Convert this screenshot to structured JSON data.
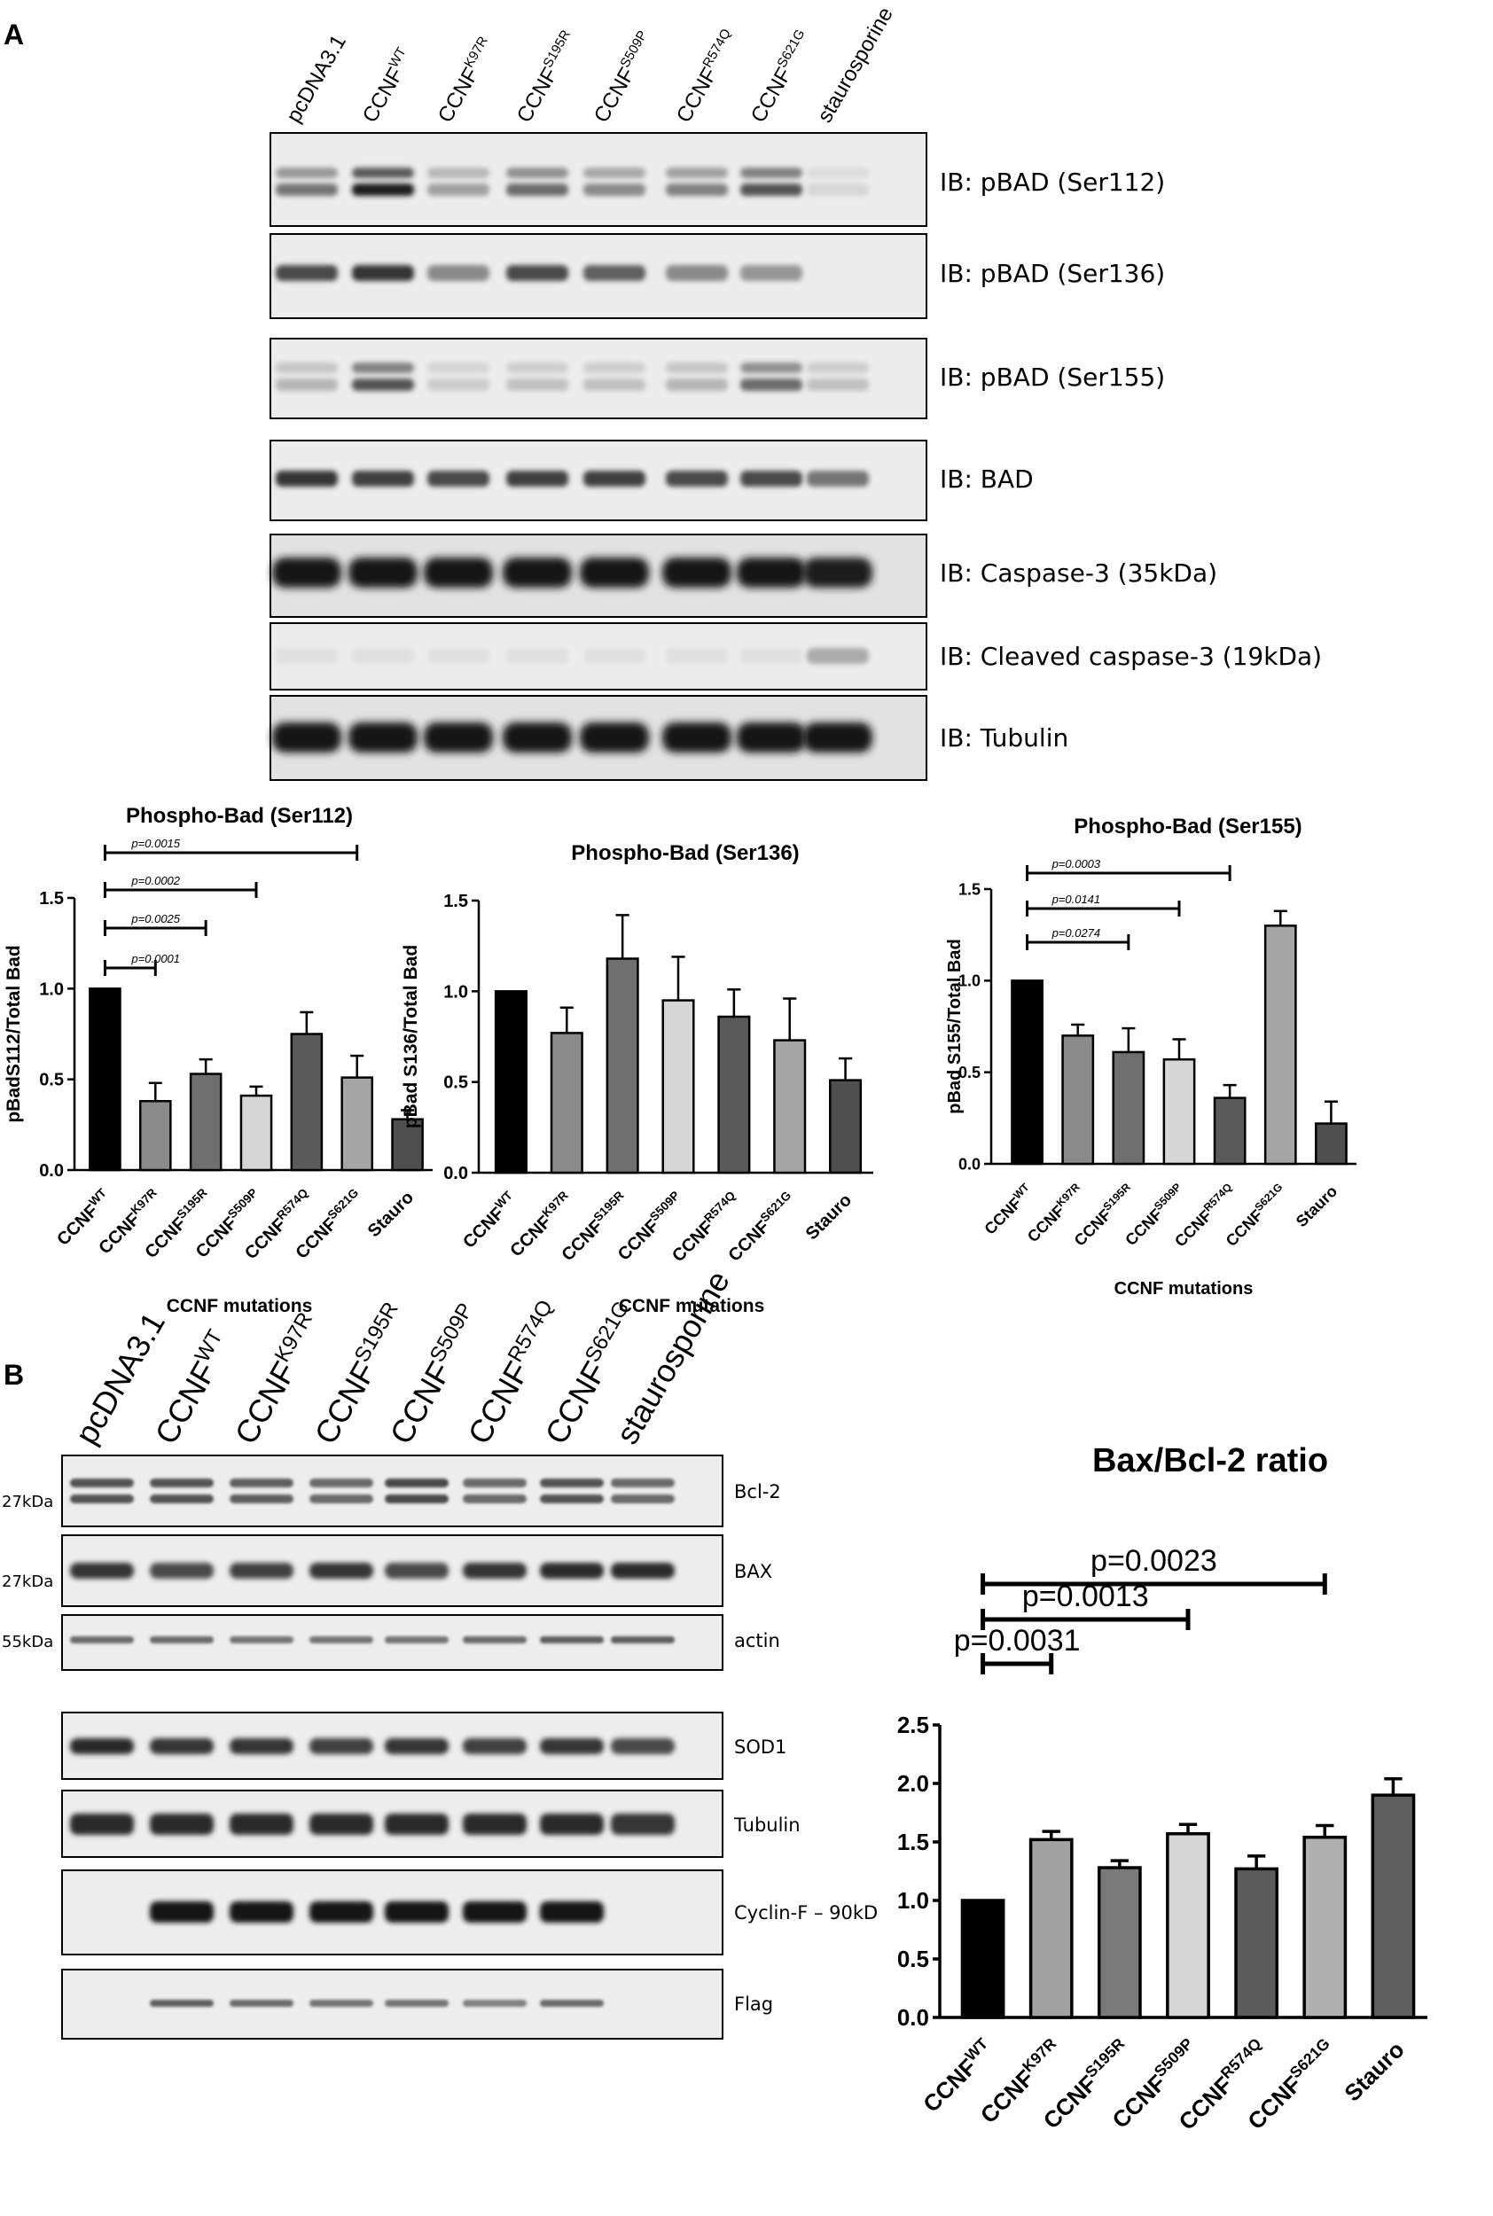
{
  "panels": {
    "a": "A",
    "b": "B"
  },
  "blot_a": {
    "lanes": [
      "pcDNA3.1",
      "CCNF",
      "CCNF",
      "CCNF",
      "CCNF",
      "CCNF",
      "CCNF",
      "staurosporine"
    ],
    "lane_sups": [
      "",
      "WT",
      "K97R",
      "S195R",
      "S509P",
      "R574Q",
      "S621G",
      ""
    ],
    "rows": [
      "IB: pBAD (Ser112)",
      "IB: pBAD (Ser136)",
      "IB: pBAD (Ser155)",
      "IB: BAD",
      "IB: Caspase-3 (35kDa)",
      "IB: Cleaved caspase-3 (19kDa)",
      "IB: Tubulin"
    ]
  },
  "blot_b": {
    "lanes": [
      "pcDNA3.1",
      "CCNF",
      "CCNF",
      "CCNF",
      "CCNF",
      "CCNF",
      "CCNF",
      "staurosporine"
    ],
    "lane_sups": [
      "",
      "WT",
      "K97R",
      "S195R",
      "S509P",
      "R574Q",
      "S621G",
      ""
    ],
    "rows": [
      "Bcl-2",
      "BAX",
      "actin",
      "SOD1",
      "Tubulin",
      "Cyclin-F – 90kD",
      "Flag"
    ],
    "mw_markers": [
      "27kDa",
      "27kDa",
      "55kDa"
    ]
  },
  "chart_data": [
    {
      "type": "bar",
      "title": "Phospho-Bad (Ser112)",
      "ylabel": "pBadS112/Total Bad",
      "xlabel": "CCNF mutations",
      "categories": [
        "CCNF",
        "CCNF",
        "CCNF",
        "CCNF",
        "CCNF",
        "CCNF",
        "Stauro"
      ],
      "category_sups": [
        "WT",
        "K97R",
        "S195R",
        "S509P",
        "R574Q",
        "S621G",
        ""
      ],
      "values": [
        1.0,
        0.38,
        0.53,
        0.41,
        0.75,
        0.51,
        0.28
      ],
      "errors": [
        0,
        0.1,
        0.08,
        0.05,
        0.12,
        0.12,
        0.05
      ],
      "colors": [
        "#000000",
        "#8a8a8a",
        "#6f6f6f",
        "#d6d6d6",
        "#5a5a5a",
        "#a5a5a5",
        "#4f4f4f"
      ],
      "yticks": [
        "0.0",
        "0.5",
        "1.0",
        "1.5"
      ],
      "ylim": [
        0,
        1.5
      ],
      "comparisons": [
        {
          "from": 0,
          "to": 1,
          "label": "p=0.0001"
        },
        {
          "from": 0,
          "to": 2,
          "label": "p=0.0025"
        },
        {
          "from": 0,
          "to": 3,
          "label": "p=0.0002"
        },
        {
          "from": 0,
          "to": 5,
          "label": "p=0.0015"
        }
      ]
    },
    {
      "type": "bar",
      "title": "Phospho-Bad (Ser136)",
      "ylabel": "pBad S136/Total Bad",
      "xlabel": "CCNF mutations",
      "categories": [
        "CCNF",
        "CCNF",
        "CCNF",
        "CCNF",
        "CCNF",
        "CCNF",
        "Stauro"
      ],
      "category_sups": [
        "WT",
        "K97R",
        "S195R",
        "S509P",
        "R574Q",
        "S621G",
        ""
      ],
      "values": [
        1.0,
        0.77,
        1.18,
        0.95,
        0.86,
        0.73,
        0.51
      ],
      "errors": [
        0,
        0.14,
        0.24,
        0.24,
        0.15,
        0.23,
        0.12
      ],
      "colors": [
        "#000000",
        "#8a8a8a",
        "#6f6f6f",
        "#d6d6d6",
        "#5a5a5a",
        "#a5a5a5",
        "#4f4f4f"
      ],
      "yticks": [
        "0.0",
        "0.5",
        "1.0",
        "1.5"
      ],
      "ylim": [
        0,
        1.5
      ],
      "comparisons": []
    },
    {
      "type": "bar",
      "title": "Phospho-Bad (Ser155)",
      "ylabel": "pBad S155/Total Bad",
      "xlabel": "CCNF mutations",
      "categories": [
        "CCNF",
        "CCNF",
        "CCNF",
        "CCNF",
        "CCNF",
        "CCNF",
        "Stauro"
      ],
      "category_sups": [
        "WT",
        "K97R",
        "S195R",
        "S509P",
        "R574Q",
        "S621G",
        ""
      ],
      "values": [
        1.0,
        0.7,
        0.61,
        0.57,
        0.36,
        1.3,
        0.22
      ],
      "errors": [
        0,
        0.06,
        0.13,
        0.11,
        0.07,
        0.08,
        0.12
      ],
      "colors": [
        "#000000",
        "#8a8a8a",
        "#6f6f6f",
        "#d6d6d6",
        "#5a5a5a",
        "#a5a5a5",
        "#4f4f4f"
      ],
      "yticks": [
        "0.0",
        "0.5",
        "1.0",
        "1.5"
      ],
      "ylim": [
        0,
        1.5
      ],
      "comparisons": [
        {
          "from": 0,
          "to": 2,
          "label": "p=0.0274"
        },
        {
          "from": 0,
          "to": 3,
          "label": "p=0.0141"
        },
        {
          "from": 0,
          "to": 4,
          "label": "p=0.0003"
        }
      ]
    },
    {
      "type": "bar",
      "title": "Bax/Bcl-2 ratio",
      "ylabel": "",
      "xlabel": "",
      "categories": [
        "CCNF",
        "CCNF",
        "CCNF",
        "CCNF",
        "CCNF",
        "CCNF",
        "Stauro"
      ],
      "category_sups": [
        "WT",
        "K97R",
        "S195R",
        "S509P",
        "R574Q",
        "S621G",
        ""
      ],
      "values": [
        1.0,
        1.52,
        1.28,
        1.57,
        1.27,
        1.54,
        1.9
      ],
      "errors": [
        0,
        0.07,
        0.06,
        0.08,
        0.11,
        0.1,
        0.14
      ],
      "colors": [
        "#000000",
        "#a3a3a3",
        "#7a7a7a",
        "#d6d6d6",
        "#5c5c5c",
        "#b0b0b0",
        "#5e5e5e"
      ],
      "yticks": [
        "0.0",
        "0.5",
        "1.0",
        "1.5",
        "2.0",
        "2.5"
      ],
      "ylim": [
        0,
        2.5
      ],
      "comparisons": [
        {
          "from": 0,
          "to": 1,
          "label": "p=0.0031"
        },
        {
          "from": 0,
          "to": 3,
          "label": "p=0.0013"
        },
        {
          "from": 0,
          "to": 5,
          "label": "p=0.0023"
        }
      ]
    }
  ]
}
